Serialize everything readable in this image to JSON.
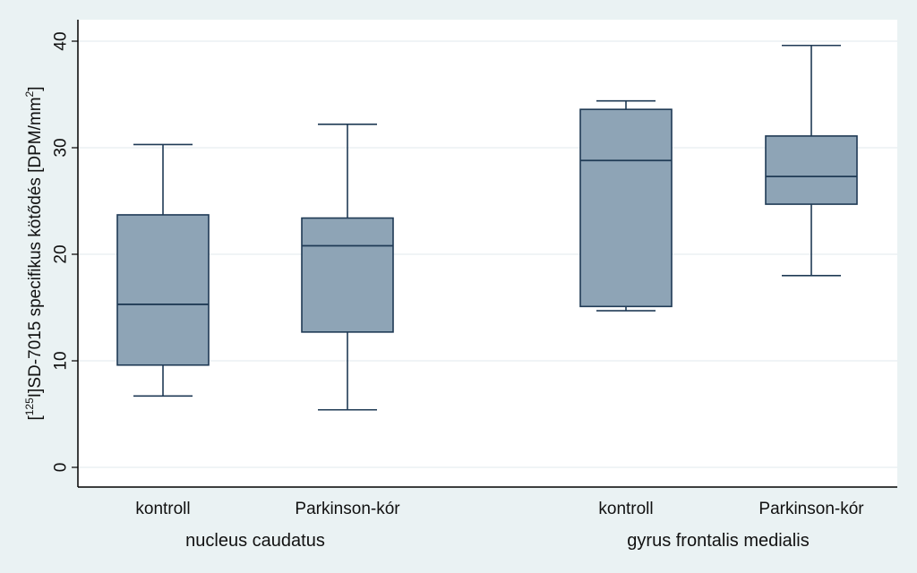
{
  "chart_data": {
    "type": "box",
    "ylabel": {
      "prefix": "[",
      "superscript": "125",
      "main": "I]SD-7015 specifikus kötődés [DPM/mm",
      "unit_superscript": "2",
      "suffix": "]"
    },
    "ylim": [
      0,
      40
    ],
    "yticks": [
      0,
      10,
      20,
      30,
      40
    ],
    "grid": true,
    "groups": [
      {
        "label": "nucleus caudatus",
        "categories": [
          "kontroll",
          "Parkinson-kór"
        ]
      },
      {
        "label": "gyrus frontalis medialis",
        "categories": [
          "kontroll",
          "Parkinson-kór"
        ]
      }
    ],
    "boxes": [
      {
        "group": 0,
        "category": "kontroll",
        "min": 6.7,
        "q1": 9.6,
        "median": 15.3,
        "q3": 23.7,
        "max": 30.3
      },
      {
        "group": 0,
        "category": "Parkinson-kór",
        "min": 5.4,
        "q1": 12.7,
        "median": 20.8,
        "q3": 23.4,
        "max": 32.2
      },
      {
        "group": 1,
        "category": "kontroll",
        "min": 14.7,
        "q1": 15.1,
        "median": 28.8,
        "q3": 33.6,
        "max": 34.4
      },
      {
        "group": 1,
        "category": "Parkinson-kór",
        "min": 18.0,
        "q1": 24.7,
        "median": 27.3,
        "q3": 31.1,
        "max": 39.6
      }
    ],
    "colors": {
      "background": "#eaf2f3",
      "plot_area": "#ffffff",
      "box_fill": "#8ea4b6",
      "box_stroke": "#1f3a55",
      "grid": "#e6eef0"
    }
  }
}
